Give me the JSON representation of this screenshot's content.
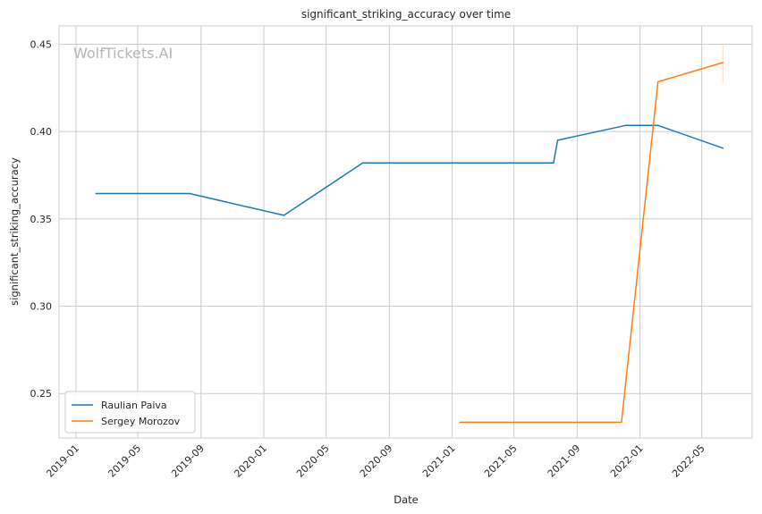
{
  "chart_data": {
    "type": "line",
    "title": "significant_striking_accuracy over time",
    "xlabel": "Date",
    "ylabel": "significant_striking_accuracy",
    "watermark": "WolfTickets.AI",
    "xlim": [
      "2018-11-29",
      "2022-08-07"
    ],
    "ylim": [
      0.2245,
      0.4605
    ],
    "yticks": [
      0.25,
      0.3,
      0.35,
      0.4,
      0.45
    ],
    "ytick_labels": [
      "0.25",
      "0.30",
      "0.35",
      "0.40",
      "0.45"
    ],
    "xticks": [
      "2019-01-01",
      "2019-05-01",
      "2019-09-01",
      "2020-01-01",
      "2020-05-01",
      "2020-09-01",
      "2021-01-01",
      "2021-05-01",
      "2021-09-01",
      "2022-01-01",
      "2022-05-01"
    ],
    "xtick_labels": [
      "2019-01",
      "2019-05",
      "2019-09",
      "2020-01",
      "2020-05",
      "2020-09",
      "2021-01",
      "2021-05",
      "2021-09",
      "2022-01",
      "2022-05"
    ],
    "grid": true,
    "legend_position": "lower-left",
    "series": [
      {
        "name": "Raulian Paiva",
        "color": "#1f77b4",
        "points": [
          {
            "x": "2019-02-09",
            "y": 0.3645
          },
          {
            "x": "2019-08-10",
            "y": 0.3645
          },
          {
            "x": "2020-02-09",
            "y": 0.352
          },
          {
            "x": "2020-07-11",
            "y": 0.382
          },
          {
            "x": "2021-07-17",
            "y": 0.382
          },
          {
            "x": "2021-07-25",
            "y": 0.395
          },
          {
            "x": "2021-12-04",
            "y": 0.4035
          },
          {
            "x": "2022-02-05",
            "y": 0.4035
          },
          {
            "x": "2022-06-11",
            "y": 0.3905
          }
        ]
      },
      {
        "name": "Sergey Morozov",
        "color": "#ff7f0e",
        "points": [
          {
            "x": "2021-01-16",
            "y": 0.2335
          },
          {
            "x": "2021-11-26",
            "y": 0.2335
          },
          {
            "x": "2022-02-05",
            "y": 0.4285
          },
          {
            "x": "2022-06-11",
            "y": 0.4395
          }
        ],
        "error_band": {
          "x": "2022-06-11",
          "low": 0.428,
          "high": 0.4495
        }
      }
    ]
  }
}
